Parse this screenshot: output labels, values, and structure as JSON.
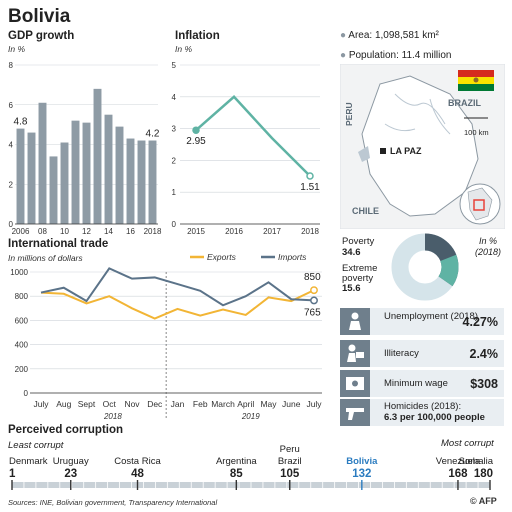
{
  "title": "Bolivia",
  "gdp": {
    "heading": "GDP growth",
    "unit": "In %",
    "bar_color": "#8e9ba5",
    "chart_data": {
      "type": "bar",
      "title": "GDP growth",
      "ylabel": "In %",
      "ylim": [
        0,
        8
      ],
      "yticks": [
        0,
        2,
        4,
        6,
        8
      ],
      "categories": [
        "2006",
        "2007",
        "2008",
        "2009",
        "2010",
        "2011",
        "2012",
        "2013",
        "2014",
        "2015",
        "2016",
        "2017",
        "2018"
      ],
      "xtick_labels": [
        "2006",
        "08",
        "10",
        "12",
        "14",
        "16",
        "2018"
      ],
      "values": [
        4.8,
        4.6,
        6.1,
        3.4,
        4.1,
        5.2,
        5.1,
        6.8,
        5.5,
        4.9,
        4.3,
        4.2,
        4.2
      ],
      "data_labels": {
        "first": "4.8",
        "last": "4.2"
      }
    }
  },
  "inflation": {
    "heading": "Inflation",
    "unit": "In %",
    "line_color": "#5fb3a4",
    "chart_data": {
      "type": "line",
      "title": "Inflation",
      "ylabel": "In %",
      "ylim": [
        0,
        5
      ],
      "yticks": [
        0,
        1,
        2,
        3,
        4,
        5
      ],
      "x": [
        "2015",
        "2016",
        "2017",
        "2018"
      ],
      "values": [
        2.95,
        4.0,
        2.7,
        1.51
      ],
      "data_labels": {
        "first": "2.95",
        "last": "1.51"
      }
    }
  },
  "map": {
    "area": "Area: 1,098,581 km²",
    "population": "Population: 11.4 million",
    "labels": {
      "brazil": "BRAZIL",
      "peru": "PERU",
      "chile": "CHILE",
      "capital": "LA PAZ",
      "scale": "100 km"
    },
    "colors": {
      "land": "#f2f3f4",
      "country": "#ffffff",
      "border": "#8c98a2",
      "water": "#bcc8d2",
      "accent": "#e8433b"
    },
    "flag_colors": [
      "#d52b1e",
      "#f9e300",
      "#007934"
    ]
  },
  "trade": {
    "heading": "International trade",
    "unit": "In millions of dollars",
    "colors": {
      "exports": "#f2b535",
      "imports": "#5b7389"
    },
    "chart_data": {
      "type": "line",
      "title": "International trade",
      "ylabel": "In millions of dollars",
      "ylim": [
        0,
        1000
      ],
      "yticks": [
        0,
        200,
        400,
        600,
        800,
        1000
      ],
      "categories": [
        "July",
        "Aug",
        "Sept",
        "Oct",
        "Nov",
        "Dec",
        "Jan",
        "Feb",
        "March",
        "April",
        "May",
        "June",
        "July"
      ],
      "year_labels": [
        "2018",
        "2019"
      ],
      "series": [
        {
          "name": "Exports",
          "values": [
            830,
            820,
            740,
            800,
            700,
            615,
            695,
            640,
            690,
            645,
            790,
            760,
            850
          ]
        },
        {
          "name": "Imports",
          "values": [
            830,
            870,
            760,
            1030,
            945,
            955,
            900,
            845,
            725,
            800,
            915,
            775,
            765
          ]
        }
      ],
      "end_labels": {
        "exports": "850",
        "imports": "765"
      }
    }
  },
  "poverty": {
    "label1": "Poverty",
    "value1": "34.6",
    "label2": "Extreme poverty",
    "value2": "15.6",
    "unit": "In %",
    "year": "(2018)",
    "colors": {
      "poverty": "#4a5d6b",
      "extreme": "#5fb3a4",
      "rest": "#d5e4ea"
    },
    "chart_data": {
      "type": "pie",
      "labels": [
        "Poverty",
        "Extreme poverty"
      ],
      "values": [
        34.6,
        15.6
      ]
    }
  },
  "stats": [
    {
      "label": "Unemployment (2018)",
      "value": "4.27%",
      "icon": "worker-icon"
    },
    {
      "label": "Illiteracy",
      "value": "2.4%",
      "icon": "reading-person-icon"
    },
    {
      "label": "Minimum wage",
      "value": "$308",
      "icon": "money-icon"
    },
    {
      "label": "Homicides (2018):",
      "value": "6.3 per 100,000 people",
      "icon": "pistol-icon"
    }
  ],
  "corruption": {
    "heading": "Perceived corruption",
    "least": "Least corrupt",
    "most": "Most corrupt",
    "highlight_color": "#2b7cc0",
    "countries": [
      {
        "name": "Denmark",
        "rank": "1"
      },
      {
        "name": "Uruguay",
        "rank": "23"
      },
      {
        "name": "Costa Rica",
        "rank": "48"
      },
      {
        "name": "Argentina",
        "rank": "85"
      },
      {
        "name": "Brazil",
        "rank": "105"
      },
      {
        "name": "Peru",
        "rank": "105"
      },
      {
        "name": "Bolivia",
        "rank": "132"
      },
      {
        "name": "Venezuela",
        "rank": "168"
      },
      {
        "name": "Somalia",
        "rank": "180"
      }
    ],
    "max_rank": 180
  },
  "footer": {
    "sources": "Sources: INE, Bolivian government, Transparency International",
    "credit": "© AFP"
  }
}
